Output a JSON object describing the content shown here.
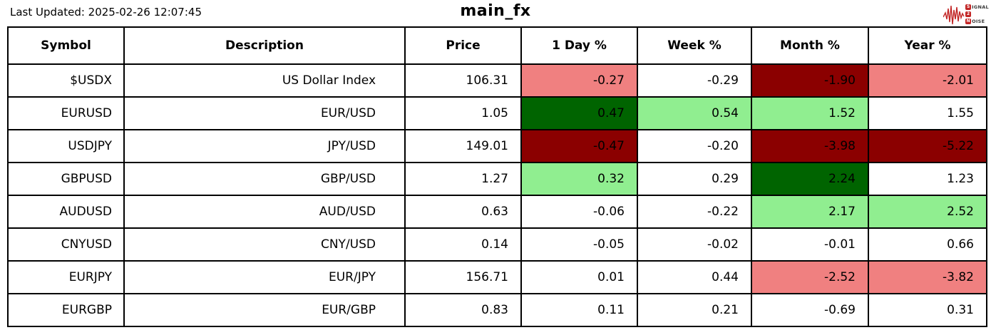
{
  "page": {
    "last_updated": "Last Updated: 2025-02-26 12:07:45",
    "title": "main_fx"
  },
  "logo": {
    "rows": [
      {
        "initial": "S",
        "rest": "IGNAL"
      },
      {
        "initial": "2",
        "rest": ""
      },
      {
        "initial": "N",
        "rest": "OISE"
      }
    ],
    "color": "#c22525"
  },
  "colors": {
    "white": "#ffffff",
    "darkgreen": "#006400",
    "lightgreen": "#90EE90",
    "darkred": "#8B0000",
    "lightcoral": "#F08080"
  },
  "chart_data": {
    "type": "table",
    "title": "main_fx",
    "last_updated": "2025-02-26 12:07:45",
    "columns": [
      "Symbol",
      "Description",
      "Price",
      "1 Day %",
      "Week %",
      "Month %",
      "Year %"
    ],
    "rows": [
      {
        "cells": [
          "$USDX",
          "US Dollar Index",
          "106.31",
          "-0.27",
          "-0.29",
          "-1.90",
          "-2.01"
        ],
        "cell_colors": [
          "white",
          "white",
          "white",
          "lightcoral",
          "white",
          "darkred",
          "lightcoral"
        ]
      },
      {
        "cells": [
          "EURUSD",
          "EUR/USD",
          "1.05",
          "0.47",
          "0.54",
          "1.52",
          "1.55"
        ],
        "cell_colors": [
          "white",
          "white",
          "white",
          "darkgreen",
          "lightgreen",
          "lightgreen",
          "white"
        ]
      },
      {
        "cells": [
          "USDJPY",
          "JPY/USD",
          "149.01",
          "-0.47",
          "-0.20",
          "-3.98",
          "-5.22"
        ],
        "cell_colors": [
          "white",
          "white",
          "white",
          "darkred",
          "white",
          "darkred",
          "darkred"
        ]
      },
      {
        "cells": [
          "GBPUSD",
          "GBP/USD",
          "1.27",
          "0.32",
          "0.29",
          "2.24",
          "1.23"
        ],
        "cell_colors": [
          "white",
          "white",
          "white",
          "lightgreen",
          "white",
          "darkgreen",
          "white"
        ]
      },
      {
        "cells": [
          "AUDUSD",
          "AUD/USD",
          "0.63",
          "-0.06",
          "-0.22",
          "2.17",
          "2.52"
        ],
        "cell_colors": [
          "white",
          "white",
          "white",
          "white",
          "white",
          "lightgreen",
          "lightgreen"
        ]
      },
      {
        "cells": [
          "CNYUSD",
          "CNY/USD",
          "0.14",
          "-0.05",
          "-0.02",
          "-0.01",
          "0.66"
        ],
        "cell_colors": [
          "white",
          "white",
          "white",
          "white",
          "white",
          "white",
          "white"
        ]
      },
      {
        "cells": [
          "EURJPY",
          "EUR/JPY",
          "156.71",
          "0.01",
          "0.44",
          "-2.52",
          "-3.82"
        ],
        "cell_colors": [
          "white",
          "white",
          "white",
          "white",
          "white",
          "lightcoral",
          "lightcoral"
        ]
      },
      {
        "cells": [
          "EURGBP",
          "EUR/GBP",
          "0.83",
          "0.11",
          "0.21",
          "-0.69",
          "0.31"
        ],
        "cell_colors": [
          "white",
          "white",
          "white",
          "white",
          "white",
          "white",
          "white"
        ]
      }
    ]
  }
}
